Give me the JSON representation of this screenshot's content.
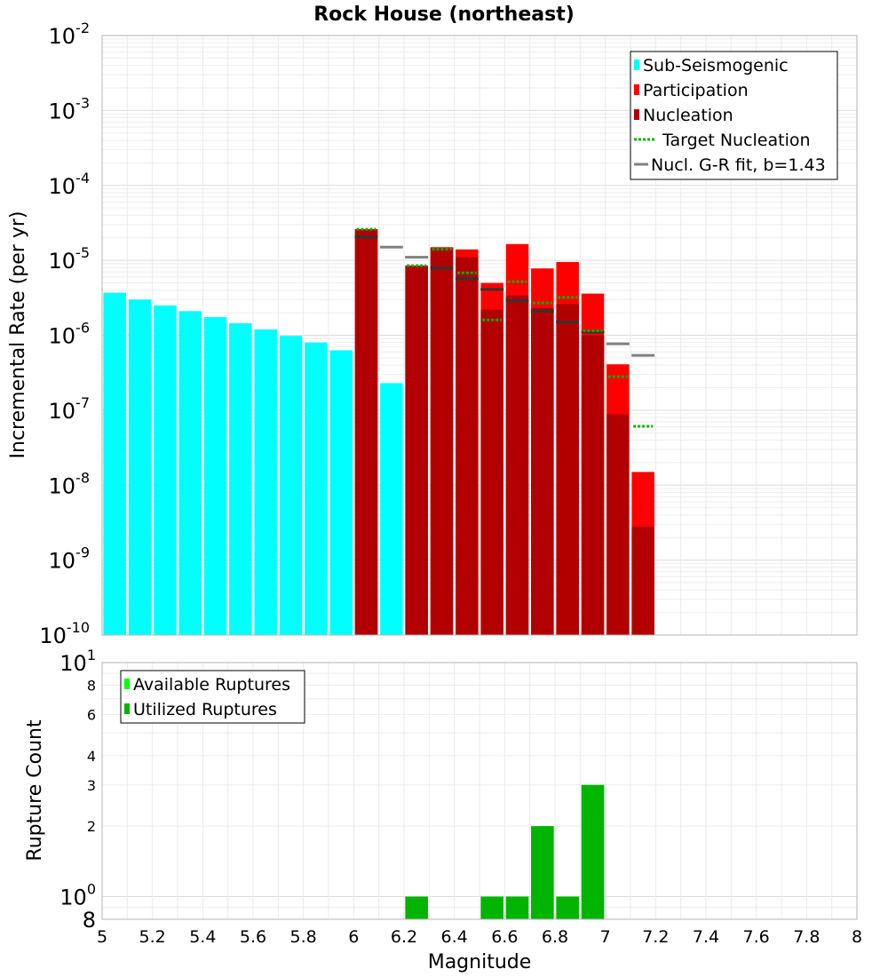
{
  "title": "Rock House (northeast)",
  "x_axis": {
    "label": "Magnitude",
    "ticks": [
      "5",
      "5.2",
      "5.4",
      "5.6",
      "5.8",
      "6",
      "6.2",
      "6.4",
      "6.6",
      "6.8",
      "7",
      "7.2",
      "7.4",
      "7.6",
      "7.8",
      "8"
    ]
  },
  "top_panel": {
    "ylabel": "Incremental Rate (per yr)",
    "y_ticks": [
      {
        "base": "10",
        "exp": "-10"
      },
      {
        "base": "10",
        "exp": "-9"
      },
      {
        "base": "10",
        "exp": "-8"
      },
      {
        "base": "10",
        "exp": "-7"
      },
      {
        "base": "10",
        "exp": "-6"
      },
      {
        "base": "10",
        "exp": "-5"
      },
      {
        "base": "10",
        "exp": "-4"
      },
      {
        "base": "10",
        "exp": "-3"
      },
      {
        "base": "10",
        "exp": "-2"
      }
    ],
    "legend": [
      {
        "label": "Sub-Seismogenic",
        "color": "#00ffff",
        "kind": "box"
      },
      {
        "label": "Participation",
        "color": "#ff0000",
        "kind": "box"
      },
      {
        "label": "Nucleation",
        "color": "#b20000",
        "kind": "box"
      },
      {
        "label": "Target Nucleation",
        "color": "#00b400",
        "kind": "dotted"
      },
      {
        "label": "Nucl. G-R fit, b=1.43",
        "color": "#808080",
        "kind": "line"
      }
    ]
  },
  "bottom_panel": {
    "ylabel": "Rupture Count",
    "y_ticks": [
      {
        "base": "8",
        "exp": ""
      },
      {
        "base": "10",
        "exp": "0"
      },
      {
        "base": "2",
        "exp": ""
      },
      {
        "base": "3",
        "exp": ""
      },
      {
        "base": "4",
        "exp": ""
      },
      {
        "base": "6",
        "exp": ""
      },
      {
        "base": "8",
        "exp": ""
      },
      {
        "base": "10",
        "exp": "1"
      }
    ],
    "legend": [
      {
        "label": "Available Ruptures",
        "color": "#00ff00",
        "kind": "box"
      },
      {
        "label": "Utilized Ruptures",
        "color": "#00b400",
        "kind": "box"
      }
    ]
  },
  "chart_data": [
    {
      "type": "bar",
      "title": "Rock House (northeast)",
      "xlabel": "Magnitude",
      "ylabel": "Incremental Rate (per yr)",
      "xlim": [
        5,
        8
      ],
      "ylim": [
        1e-10,
        0.01
      ],
      "y_scale": "log",
      "grid": true,
      "legend_position": "top-right",
      "series": [
        {
          "name": "Sub-Seismogenic",
          "color": "#00ffff",
          "x": [
            5.05,
            5.15,
            5.25,
            5.35,
            5.45,
            5.55,
            5.65,
            5.75,
            5.85,
            5.95,
            6.15
          ],
          "values": [
            3.7e-06,
            3e-06,
            2.5e-06,
            2.1e-06,
            1.75e-06,
            1.45e-06,
            1.2e-06,
            9.8e-07,
            8e-07,
            6.3e-07,
            2.3e-07
          ]
        },
        {
          "name": "Participation",
          "color": "#ff0000",
          "x": [
            6.05,
            6.25,
            6.35,
            6.45,
            6.55,
            6.65,
            6.75,
            6.85,
            6.95,
            7.05,
            7.15
          ],
          "values": [
            2.6e-05,
            8.5e-06,
            1.5e-05,
            1.4e-05,
            5e-06,
            1.65e-05,
            7.8e-06,
            9.5e-06,
            3.6e-06,
            4.1e-07,
            1.5e-08
          ]
        },
        {
          "name": "Nucleation",
          "color": "#b20000",
          "x": [
            6.05,
            6.25,
            6.35,
            6.45,
            6.55,
            6.65,
            6.75,
            6.85,
            6.95,
            7.05,
            7.15
          ],
          "values": [
            2.6e-05,
            8.5e-06,
            1.45e-05,
            1.1e-05,
            2.2e-06,
            3.4e-06,
            2.3e-06,
            2.6e-06,
            1e-06,
            8.8e-08,
            2.8e-09
          ]
        },
        {
          "name": "Target Nucleation",
          "color": "#00b400",
          "x": [
            6.05,
            6.25,
            6.35,
            6.45,
            6.55,
            6.65,
            6.75,
            6.85,
            6.95,
            7.05,
            7.15
          ],
          "values": [
            2.6e-05,
            8.5e-06,
            1.4e-05,
            6.8e-06,
            1.6e-06,
            5.2e-06,
            2.7e-06,
            3.2e-06,
            1.15e-06,
            2.8e-07,
            6.1e-08
          ]
        },
        {
          "name": "Nucl. G-R fit, b=1.43",
          "color": "#808080",
          "x": [
            6.05,
            6.15,
            6.25,
            6.35,
            6.45,
            6.55,
            6.65,
            6.75,
            6.85,
            6.95,
            7.05,
            7.15
          ],
          "values": [
            2.05e-05,
            1.5e-05,
            1.1e-05,
            7.9e-06,
            5.7e-06,
            4.1e-06,
            2.9e-06,
            2.1e-06,
            1.5e-06,
            1.1e-06,
            7.7e-07,
            5.4e-07
          ]
        }
      ]
    },
    {
      "type": "bar",
      "xlabel": "Magnitude",
      "ylabel": "Rupture Count",
      "xlim": [
        5,
        8
      ],
      "ylim": [
        0.8,
        10
      ],
      "y_scale": "log",
      "grid": true,
      "legend_position": "top-left",
      "series": [
        {
          "name": "Available Ruptures",
          "color": "#00ff00",
          "x": [
            6.25,
            6.55,
            6.65,
            6.75,
            6.85,
            6.95
          ],
          "values": [
            1,
            1,
            1,
            2,
            1,
            3
          ]
        },
        {
          "name": "Utilized Ruptures",
          "color": "#00b400",
          "x": [
            6.25,
            6.55,
            6.65,
            6.75,
            6.85,
            6.95
          ],
          "values": [
            1,
            1,
            1,
            2,
            1,
            3
          ]
        }
      ]
    }
  ]
}
